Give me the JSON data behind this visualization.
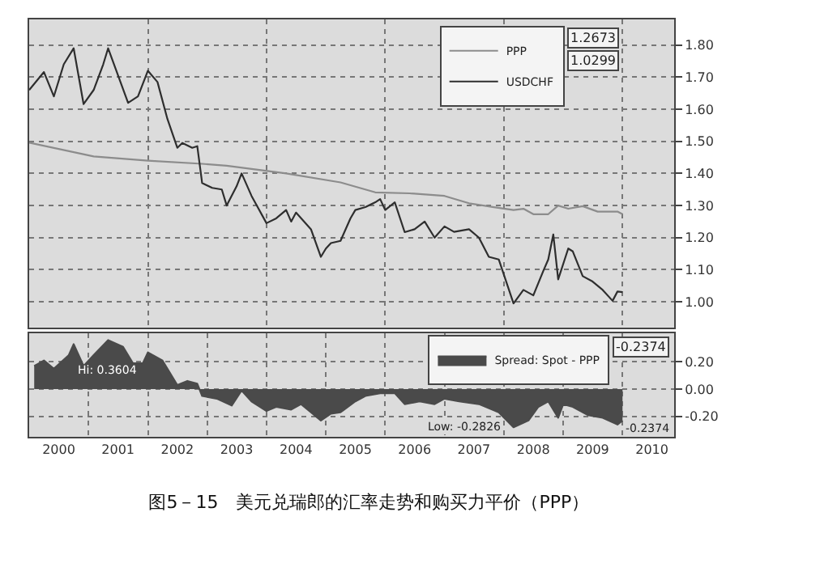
{
  "chart_data": [
    {
      "type": "line",
      "title": "图5－15　美元兑瑞郎的汇率走势和购买力平价（PPP）",
      "legend": "top right",
      "grid": true,
      "tick_labels": "y",
      "marker": "none",
      "line_style": "solid",
      "xlim": [
        "2000-01-01",
        "2010-11-15"
      ],
      "ylim": [
        0.92,
        1.88
      ],
      "yticks": [
        {
          "value": 1.0,
          "label": "1.00"
        },
        {
          "value": 1.1,
          "label": "1.10"
        },
        {
          "value": 1.2,
          "label": "1.20"
        },
        {
          "value": 1.3,
          "label": "1.30"
        },
        {
          "value": 1.4,
          "label": "1.40"
        },
        {
          "value": 1.5,
          "label": "1.50"
        },
        {
          "value": 1.6,
          "label": "1.60"
        },
        {
          "value": 1.7,
          "label": "1.70"
        },
        {
          "value": 1.8,
          "label": "1.80"
        }
      ],
      "annotations": [
        "1.2673",
        "1.0299"
      ],
      "series": [
        {
          "name": "PPP",
          "color": "#8c8c8c",
          "x": [
            "2000-01",
            "2001-02",
            "2002-01",
            "2002-12",
            "2003-05",
            "2004-05",
            "2005-04",
            "2005-11",
            "2006-06",
            "2007-01",
            "2007-06",
            "2007-11",
            "2008-03",
            "2008-05",
            "2008-07",
            "2008-10",
            "2008-12",
            "2009-02",
            "2009-05",
            "2009-08",
            "2009-12",
            "2010-01"
          ],
          "values": [
            1.496,
            1.453,
            1.44,
            1.43,
            1.424,
            1.4,
            1.372,
            1.341,
            1.338,
            1.33,
            1.307,
            1.295,
            1.286,
            1.29,
            1.273,
            1.273,
            1.3,
            1.29,
            1.298,
            1.281,
            1.281,
            1.273
          ]
        },
        {
          "name": "USDCHF",
          "color": "#2e2e2e",
          "x": [
            "2000-01",
            "2000-04",
            "2000-06",
            "2000-08",
            "2000-10",
            "2000-12",
            "2001-02",
            "2001-04",
            "2001-05",
            "2001-09",
            "2001-11",
            "2002-01",
            "2002-03",
            "2002-05",
            "2002-07",
            "2002-08",
            "2002-10",
            "2002-11",
            "2002-12",
            "2003-02",
            "2003-04",
            "2003-05",
            "2003-07",
            "2003-08",
            "2003-10",
            "2004-01",
            "2004-03",
            "2004-05",
            "2004-06",
            "2004-07",
            "2004-10",
            "2004-12",
            "2005-01",
            "2005-02",
            "2005-04",
            "2005-06",
            "2005-07",
            "2005-09",
            "2005-11",
            "2005-12",
            "2006-01",
            "2006-03",
            "2006-05",
            "2006-07",
            "2006-09",
            "2006-11",
            "2007-01",
            "2007-03",
            "2007-06",
            "2007-08",
            "2007-10",
            "2007-12",
            "2008-03",
            "2008-05",
            "2008-07",
            "2008-09",
            "2008-10",
            "2008-11",
            "2008-12",
            "2009-02",
            "2009-03",
            "2009-05",
            "2009-07",
            "2009-09",
            "2009-11",
            "2009-12",
            "2010-01"
          ],
          "values": [
            1.66,
            1.716,
            1.64,
            1.74,
            1.79,
            1.616,
            1.66,
            1.74,
            1.79,
            1.62,
            1.64,
            1.72,
            1.685,
            1.57,
            1.48,
            1.495,
            1.48,
            1.485,
            1.37,
            1.355,
            1.35,
            1.3,
            1.36,
            1.4,
            1.33,
            1.245,
            1.26,
            1.286,
            1.25,
            1.278,
            1.226,
            1.14,
            1.166,
            1.183,
            1.19,
            1.26,
            1.286,
            1.295,
            1.31,
            1.32,
            1.286,
            1.31,
            1.217,
            1.226,
            1.25,
            1.2,
            1.235,
            1.218,
            1.226,
            1.2,
            1.14,
            1.132,
            0.995,
            1.037,
            1.02,
            1.097,
            1.132,
            1.21,
            1.07,
            1.166,
            1.157,
            1.08,
            1.063,
            1.037,
            1.003,
            1.032,
            1.03
          ]
        }
      ]
    },
    {
      "type": "area",
      "legend": "top right",
      "grid": true,
      "marker": "none",
      "xlim": [
        "2000-01-01",
        "2010-11-15"
      ],
      "xticks": [
        {
          "value": "2000-07-01",
          "label": "2000"
        },
        {
          "value": "2001-07-01",
          "label": "2001"
        },
        {
          "value": "2002-07-01",
          "label": "2002"
        },
        {
          "value": "2003-07-01",
          "label": "2003"
        },
        {
          "value": "2004-07-01",
          "label": "2004"
        },
        {
          "value": "2005-07-01",
          "label": "2005"
        },
        {
          "value": "2006-07-01",
          "label": "2006"
        },
        {
          "value": "2007-07-01",
          "label": "2007"
        },
        {
          "value": "2008-07-01",
          "label": "2008"
        },
        {
          "value": "2009-07-01",
          "label": "2009"
        },
        {
          "value": "2010-07-01",
          "label": "2010"
        }
      ],
      "ylim": [
        -0.35,
        0.41
      ],
      "yticks": [
        {
          "value": 0.2,
          "label": "0.20"
        },
        {
          "value": 0.0,
          "label": "0.00"
        },
        {
          "value": -0.2,
          "label": "-0.20"
        }
      ],
      "annotations": [
        "-0.2374",
        {
          "text": "Hi: 0.3604",
          "x": "2001-05",
          "y": 0.36
        },
        {
          "text": "Low: -0.2826",
          "x": "2008-03",
          "y": -0.28
        },
        {
          "text": "-0.2374",
          "x": "2010-01",
          "y": -0.23
        }
      ],
      "series": [
        {
          "name": "Spread: Spot - PPP",
          "color": "#4a4a4a",
          "x": [
            "2000-02",
            "2000-04",
            "2000-06",
            "2000-09",
            "2000-10",
            "2000-12",
            "2001-02",
            "2001-05",
            "2001-08",
            "2001-10",
            "2001-12",
            "2002-01",
            "2002-04",
            "2002-07",
            "2002-09",
            "2002-11",
            "2002-12",
            "2003-03",
            "2003-06",
            "2003-08",
            "2003-10",
            "2004-01",
            "2004-03",
            "2004-06",
            "2004-08",
            "2004-12",
            "2005-02",
            "2005-04",
            "2005-07",
            "2005-09",
            "2005-12",
            "2006-03",
            "2006-05",
            "2006-08",
            "2006-11",
            "2007-01",
            "2007-04",
            "2007-08",
            "2007-12",
            "2008-03",
            "2008-06",
            "2008-08",
            "2008-10",
            "2008-12",
            "2009-01",
            "2009-03",
            "2009-06",
            "2009-09",
            "2009-12",
            "2010-01"
          ],
          "values": [
            0.17,
            0.21,
            0.15,
            0.25,
            0.33,
            0.17,
            0.25,
            0.36,
            0.31,
            0.19,
            0.19,
            0.27,
            0.21,
            0.03,
            0.06,
            0.04,
            -0.05,
            -0.07,
            -0.12,
            -0.01,
            -0.09,
            -0.16,
            -0.13,
            -0.15,
            -0.11,
            -0.23,
            -0.18,
            -0.17,
            -0.09,
            -0.05,
            -0.03,
            -0.03,
            -0.11,
            -0.09,
            -0.11,
            -0.07,
            -0.09,
            -0.11,
            -0.17,
            -0.28,
            -0.23,
            -0.13,
            -0.09,
            -0.21,
            -0.11,
            -0.13,
            -0.19,
            -0.21,
            -0.26,
            -0.23
          ]
        }
      ]
    }
  ]
}
